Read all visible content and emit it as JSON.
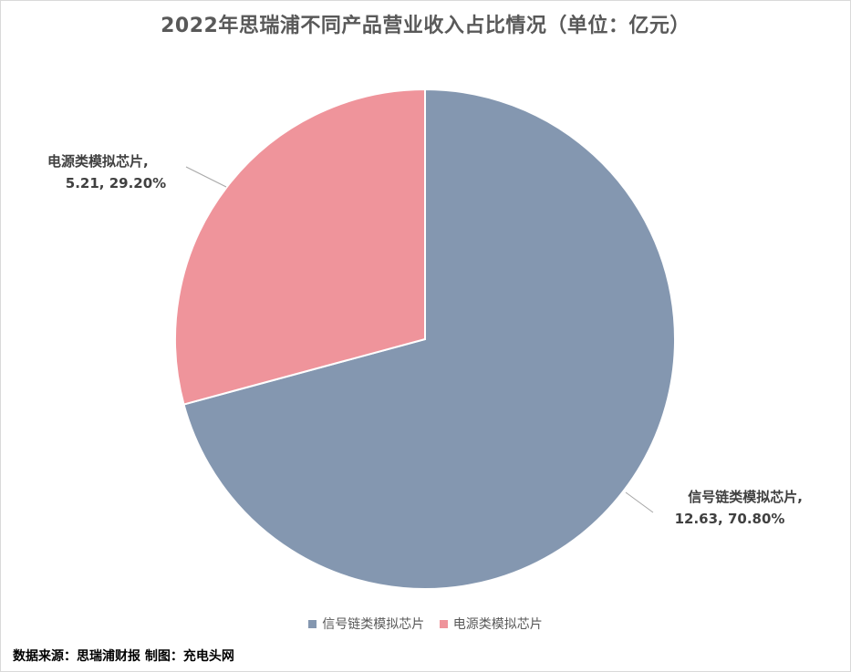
{
  "chart_data": {
    "type": "pie",
    "title": "2022年思瑞浦不同产品营业收入占比情况（单位：亿元）",
    "slices": [
      {
        "name": "信号链类模拟芯片",
        "value": 12.63,
        "percent": "70.80%",
        "label_line1": "信号链类模拟芯片,",
        "label_line2": "12.63, 70.80%",
        "color": "#8497b0"
      },
      {
        "name": "电源类模拟芯片",
        "value": 5.21,
        "percent": "29.20%",
        "label_line1": "电源类模拟芯片,",
        "label_line2": "5.21, 29.20%",
        "color": "#ef949b"
      }
    ],
    "legend": [
      "信号链类模拟芯片",
      "电源类模拟芯片"
    ],
    "legend_position": "bottom"
  },
  "footer": {
    "source": "数据来源：思瑞浦财报  制图：充电头网"
  }
}
